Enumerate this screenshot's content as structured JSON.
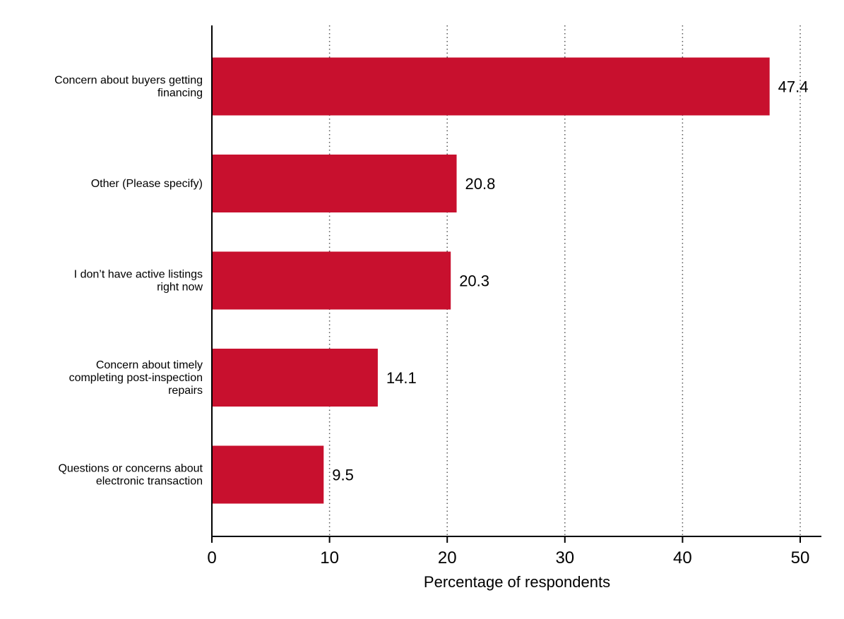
{
  "chart_data": {
    "type": "bar",
    "orientation": "horizontal",
    "categories": [
      [
        "Concern about buyers getting",
        "financing"
      ],
      [
        "Other (Please specify)"
      ],
      [
        "I don’t have active listings",
        "right now"
      ],
      [
        "Concern about timely",
        "completing post-inspection",
        "repairs"
      ],
      [
        "Questions or concerns about",
        "electronic transaction"
      ]
    ],
    "values": [
      47.4,
      20.8,
      20.3,
      14.1,
      9.5
    ],
    "value_labels": [
      "47.4",
      "20.8",
      "20.3",
      "14.1",
      "9.5"
    ],
    "xlabel": "Percentage of respondents",
    "ylabel": "",
    "xlim": [
      0,
      52
    ],
    "xticks": [
      0,
      10,
      20,
      30,
      40,
      50
    ],
    "xtick_labels": [
      "0",
      "10",
      "20",
      "30",
      "40",
      "50"
    ],
    "grid": "vertical dotted",
    "bar_color": "#c8102e"
  }
}
